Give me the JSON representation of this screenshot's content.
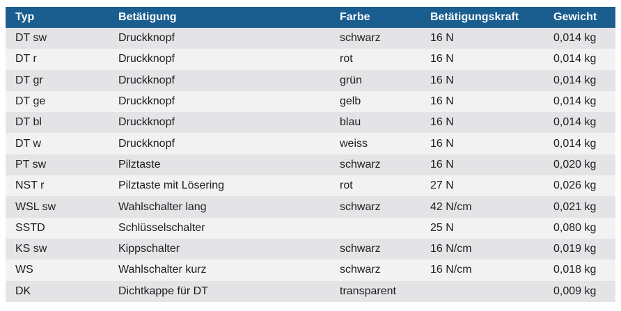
{
  "table": {
    "columns": [
      "Typ",
      "Betätigung",
      "Farbe",
      "Betätigungskraft",
      "Gewicht"
    ],
    "rows": [
      [
        "DT sw",
        "Druckknopf",
        "schwarz",
        "16 N",
        "0,014 kg"
      ],
      [
        "DT r",
        "Druckknopf",
        "rot",
        "16 N",
        "0,014 kg"
      ],
      [
        "DT gr",
        "Druckknopf",
        "grün",
        "16 N",
        "0,014 kg"
      ],
      [
        "DT ge",
        "Druckknopf",
        "gelb",
        "16 N",
        "0,014 kg"
      ],
      [
        "DT bl",
        "Druckknopf",
        "blau",
        "16 N",
        "0,014 kg"
      ],
      [
        "DT w",
        "Druckknopf",
        "weiss",
        "16 N",
        "0,014 kg"
      ],
      [
        "PT sw",
        "Pilztaste",
        "schwarz",
        "16 N",
        "0,020 kg"
      ],
      [
        "NST r",
        "Pilztaste mit Lösering",
        "rot",
        "27 N",
        "0,026 kg"
      ],
      [
        "WSL sw",
        "Wahlschalter lang",
        "schwarz",
        "42 N/cm",
        "0,021 kg"
      ],
      [
        "SSTD",
        "Schlüsselschalter",
        "",
        "25 N",
        "0,080 kg"
      ],
      [
        "KS sw",
        "Kippschalter",
        "schwarz",
        "16 N/cm",
        "0,019 kg"
      ],
      [
        "WS",
        "Wahlschalter kurz",
        "schwarz",
        "16 N/cm",
        "0,018 kg"
      ],
      [
        "DK",
        "Dichtkappe für DT",
        "transparent",
        "",
        "0,009 kg"
      ]
    ],
    "colors": {
      "page_bg": "#ffffff",
      "header_bg": "#1a5e90",
      "header_text": "#ffffff",
      "row_odd_bg": "#e4e4e6",
      "row_even_bg": "#f2f2f3",
      "body_text": "#1d1d1f"
    }
  }
}
